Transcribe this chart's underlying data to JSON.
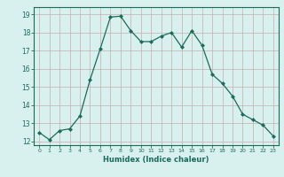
{
  "x": [
    0,
    1,
    2,
    3,
    4,
    5,
    6,
    7,
    8,
    9,
    10,
    11,
    12,
    13,
    14,
    15,
    16,
    17,
    18,
    19,
    20,
    21,
    22,
    23
  ],
  "y": [
    12.5,
    12.1,
    12.6,
    12.7,
    13.4,
    15.4,
    17.1,
    18.85,
    18.9,
    18.1,
    17.5,
    17.5,
    17.8,
    18.0,
    17.2,
    18.1,
    17.3,
    15.7,
    15.2,
    14.5,
    13.5,
    13.2,
    12.9,
    12.3
  ],
  "xlabel": "Humidex (Indice chaleur)",
  "xlim": [
    -0.5,
    23.5
  ],
  "ylim": [
    11.8,
    19.4
  ],
  "yticks": [
    12,
    13,
    14,
    15,
    16,
    17,
    18,
    19
  ],
  "xticks": [
    0,
    1,
    2,
    3,
    4,
    5,
    6,
    7,
    8,
    9,
    10,
    11,
    12,
    13,
    14,
    15,
    16,
    17,
    18,
    19,
    20,
    21,
    22,
    23
  ],
  "line_color": "#1a6b5a",
  "marker_color": "#1a6b5a",
  "bg_color": "#d8f0ee",
  "grid_color": "#c8b8b8",
  "plot_bg": "#d8f0ee"
}
